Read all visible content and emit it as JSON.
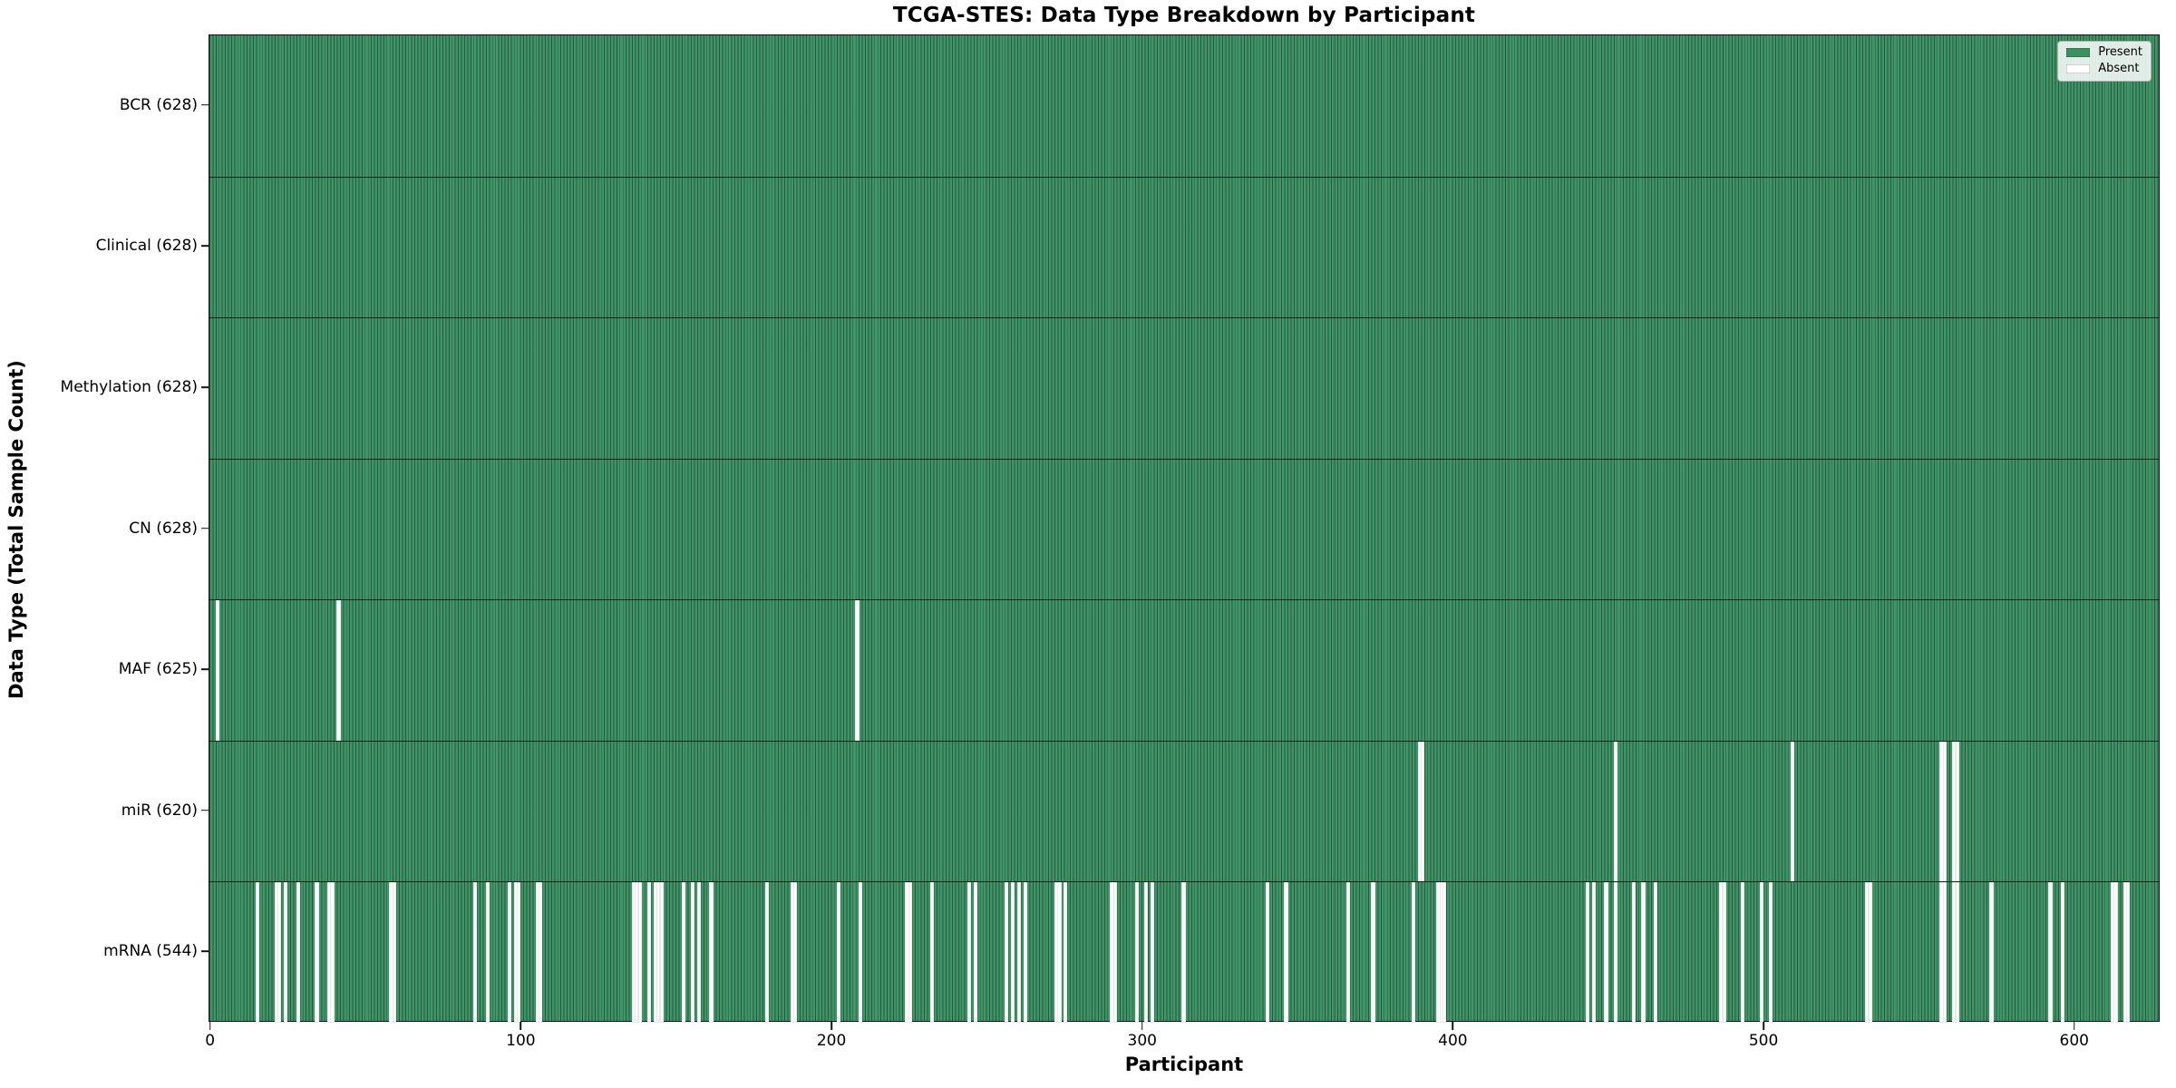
{
  "title": "TCGA-STES: Data Type Breakdown by Participant",
  "chart_data": {
    "type": "heatmap",
    "title": "TCGA-STES: Data Type Breakdown by Participant",
    "xlabel": "Participant",
    "ylabel": "Data Type (Total Sample Count)",
    "x_ticks": [
      0,
      100,
      200,
      300,
      400,
      500,
      600
    ],
    "x_range": [
      0,
      628
    ],
    "n_participants": 628,
    "grid": false,
    "legend": {
      "position": "upper right",
      "entries": [
        {
          "label": "Present",
          "color": "#3b9164"
        },
        {
          "label": "Absent",
          "color": "#ffffff"
        }
      ]
    },
    "rows": [
      {
        "label": "BCR (628)",
        "name": "BCR",
        "present_count": 628,
        "absent_participants": []
      },
      {
        "label": "Clinical (628)",
        "name": "Clinical",
        "present_count": 628,
        "absent_participants": []
      },
      {
        "label": "Methylation (628)",
        "name": "Methylation",
        "present_count": 628,
        "absent_participants": []
      },
      {
        "label": "CN (628)",
        "name": "CN",
        "present_count": 628,
        "absent_participants": []
      },
      {
        "label": "MAF (625)",
        "name": "MAF",
        "present_count": 625,
        "absent_participants": [
          2,
          41,
          208
        ]
      },
      {
        "label": "miR (620)",
        "name": "miR",
        "present_count": 620,
        "absent_participants": [
          389,
          390,
          452,
          509,
          557,
          558,
          561,
          562
        ]
      },
      {
        "label": "mRNA (544)",
        "name": "mRNA",
        "present_count": 544,
        "absent_participants": [
          15,
          21,
          22,
          24,
          28,
          34,
          38,
          39,
          58,
          59,
          85,
          89,
          96,
          98,
          99,
          105,
          106,
          136,
          137,
          138,
          141,
          143,
          144,
          145,
          152,
          155,
          157,
          161,
          179,
          187,
          188,
          202,
          209,
          224,
          225,
          232,
          244,
          246,
          256,
          258,
          260,
          262,
          272,
          273,
          275,
          290,
          291,
          298,
          301,
          303,
          313,
          340,
          346,
          366,
          374,
          387,
          395,
          396,
          397,
          443,
          445,
          449,
          452,
          458,
          461,
          465,
          486,
          487,
          493,
          499,
          502,
          533,
          534,
          557,
          558,
          561,
          562,
          573,
          592,
          596,
          612,
          613,
          616,
          617
        ]
      }
    ]
  },
  "colors": {
    "present_fill": "#3b9164",
    "bar_edge": "#1e5636",
    "absent_fill": "#ffffff",
    "spine": "#141414",
    "legend_border": "#b5b5ab"
  }
}
